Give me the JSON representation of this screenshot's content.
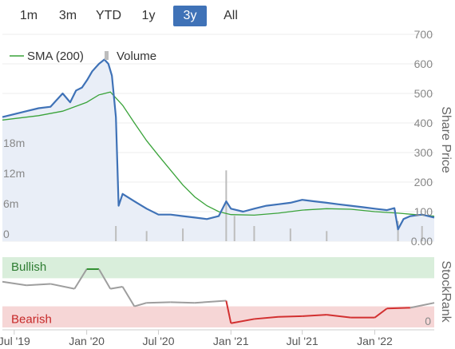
{
  "range_selector": {
    "buttons": [
      "1m",
      "3m",
      "YTD",
      "1y",
      "3y",
      "All"
    ],
    "active": "3y"
  },
  "colors": {
    "price_line": "#3f72b7",
    "price_fill": "#e9eef7",
    "sma_line": "#3aa33a",
    "volume_bar": "#bdbdbd",
    "stockrank_neutral": "#9e9e9e",
    "stockrank_bullish": "#2f8f2f",
    "stockrank_bearish": "#d23030",
    "bullish_band": "#d9eedb",
    "bearish_band": "#f6d6d6",
    "active_button": "#3f72b7"
  },
  "chart_data": [
    {
      "type": "line",
      "title": "",
      "legend": [
        "SMA (200)",
        "Volume"
      ],
      "legend_position": "top-left",
      "y_axis_right": {
        "label": "Share Price",
        "ticks": [
          "700",
          "600",
          "500",
          "400",
          "300",
          "200",
          "100",
          "0.00"
        ],
        "range": [
          0,
          700
        ]
      },
      "y_axis_left_volume": {
        "ticks": [
          "18m",
          "12m",
          "6m",
          "0"
        ],
        "range": [
          0,
          24000000
        ]
      },
      "x_axis": {
        "ticks": [
          "Jul '19",
          "Jan '20",
          "Jul '20",
          "Jan '21",
          "Jul '21",
          "Jan '22"
        ],
        "range": [
          "2019-06-01",
          "2022-06-01"
        ]
      },
      "series": [
        {
          "name": "",
          "kind": "share_price",
          "x": [
            "2019-06-01",
            "2019-07-01",
            "2019-08-01",
            "2019-09-01",
            "2019-10-01",
            "2019-11-01",
            "2019-11-20",
            "2019-12-05",
            "2019-12-20",
            "2020-01-02",
            "2020-01-15",
            "2020-02-01",
            "2020-02-15",
            "2020-02-25",
            "2020-03-05",
            "2020-03-15",
            "2020-03-22",
            "2020-04-01",
            "2020-05-01",
            "2020-06-01",
            "2020-07-01",
            "2020-08-01",
            "2020-09-01",
            "2020-10-01",
            "2020-11-01",
            "2020-12-01",
            "2020-12-20",
            "2021-01-01",
            "2021-02-01",
            "2021-03-01",
            "2021-04-01",
            "2021-05-01",
            "2021-06-01",
            "2021-07-01",
            "2021-08-01",
            "2021-09-01",
            "2021-10-01",
            "2021-11-01",
            "2021-12-01",
            "2022-01-01",
            "2022-02-01",
            "2022-02-20",
            "2022-03-01",
            "2022-03-15",
            "2022-04-01",
            "2022-05-01",
            "2022-06-01"
          ],
          "values": [
            420,
            430,
            440,
            450,
            455,
            500,
            470,
            510,
            520,
            545,
            575,
            600,
            615,
            600,
            560,
            420,
            120,
            160,
            135,
            110,
            90,
            90,
            85,
            80,
            75,
            85,
            135,
            110,
            100,
            110,
            120,
            125,
            130,
            140,
            135,
            130,
            125,
            120,
            115,
            110,
            105,
            112,
            40,
            75,
            85,
            90,
            80
          ]
        },
        {
          "name": "SMA (200)",
          "kind": "moving_average",
          "x": [
            "2019-06-01",
            "2019-09-01",
            "2019-11-01",
            "2020-01-01",
            "2020-02-01",
            "2020-03-01",
            "2020-04-01",
            "2020-05-01",
            "2020-06-01",
            "2020-07-01",
            "2020-08-01",
            "2020-09-01",
            "2020-10-01",
            "2020-11-01",
            "2020-12-01",
            "2021-01-01",
            "2021-03-01",
            "2021-05-01",
            "2021-07-01",
            "2021-09-01",
            "2021-11-01",
            "2022-01-01",
            "2022-03-01",
            "2022-06-01"
          ],
          "values": [
            410,
            425,
            440,
            470,
            495,
            505,
            460,
            400,
            340,
            290,
            240,
            190,
            150,
            120,
            100,
            90,
            88,
            95,
            105,
            110,
            108,
            100,
            95,
            85
          ]
        },
        {
          "name": "Volume",
          "kind": "volume",
          "x": [
            "2020-03-15",
            "2020-06-01",
            "2020-09-01",
            "2020-12-20",
            "2021-01-10",
            "2021-03-01",
            "2021-06-01",
            "2021-09-01",
            "2022-03-01",
            "2022-05-01"
          ],
          "values": [
            3000000,
            2000000,
            2500000,
            14000000,
            5000000,
            3000000,
            2500000,
            2000000,
            4000000,
            3000000
          ]
        }
      ]
    },
    {
      "type": "line",
      "title": "",
      "y_axis_right": {
        "label": "StockRank",
        "ticks": [
          "0"
        ],
        "range": [
          0,
          100
        ]
      },
      "bands": [
        {
          "label": "Bullish",
          "from": 70,
          "to": 100
        },
        {
          "label": "Bearish",
          "from": 0,
          "to": 30
        }
      ],
      "x_axis": {
        "ticks": [
          "Jul '19",
          "Jan '20",
          "Jul '20",
          "Jan '21",
          "Jul '21",
          "Jan '22"
        ],
        "range": [
          "2019-06-01",
          "2022-06-01"
        ]
      },
      "series": [
        {
          "name": "",
          "x": [
            "2019-06-01",
            "2019-08-01",
            "2019-10-01",
            "2019-12-01",
            "2020-01-01",
            "2020-02-01",
            "2020-03-01",
            "2020-04-01",
            "2020-05-01",
            "2020-06-01",
            "2020-08-01",
            "2020-10-01",
            "2020-12-20",
            "2021-01-01",
            "2021-03-01",
            "2021-05-01",
            "2021-07-01",
            "2021-09-01",
            "2021-11-01",
            "2022-01-01",
            "2022-02-01",
            "2022-04-01",
            "2022-06-01"
          ],
          "values": [
            65,
            60,
            62,
            55,
            83,
            83,
            55,
            58,
            30,
            35,
            36,
            35,
            38,
            6,
            12,
            15,
            16,
            18,
            14,
            14,
            27,
            28,
            35
          ]
        }
      ]
    }
  ]
}
